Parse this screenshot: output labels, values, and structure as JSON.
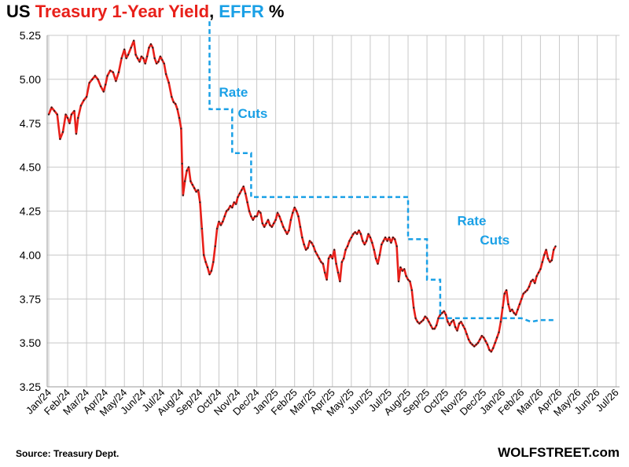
{
  "title": {
    "part1": "US ",
    "part2": "Treasury 1-Year Yield",
    "part3": ", ",
    "part4": "EFFR",
    "part5": " %"
  },
  "source": "Source: Treasury Dept.",
  "brand": "WOLFSTREET.com",
  "colors": {
    "yield": "#e8201a",
    "yield_dots": "#222222",
    "effr": "#1aa0e6",
    "grid": "#c8c8c8",
    "axis": "#999999"
  },
  "chart_data": {
    "type": "line",
    "xlabel": "",
    "ylabel": "",
    "ylim": [
      3.25,
      5.25
    ],
    "yticks": [
      "5.25",
      "5.00",
      "4.75",
      "4.50",
      "4.25",
      "4.00",
      "3.75",
      "3.50",
      "3.25"
    ],
    "month_labels": [
      "Jan/24",
      "Feb/24",
      "Mar/24",
      "Apr/24",
      "May/24",
      "Jun/24",
      "Jul/24",
      "Aug/24",
      "Sep/24",
      "Oct/24",
      "Nov/24",
      "Dec/24",
      "Jan/25",
      "Feb/25",
      "Mar/25",
      "Apr/25",
      "May/25",
      "Jun/25",
      "Jul/25",
      "Aug/25",
      "Sep/25",
      "Oct/25",
      "Nov/25",
      "Dec/25",
      "Jan/26",
      "Feb/26",
      "Mar/26",
      "Apr/26",
      "May/26",
      "Jun/26",
      "Jul/26"
    ],
    "grid": true,
    "annotations": [
      {
        "text": "Rate",
        "month": 9.0,
        "y": 4.9
      },
      {
        "text": "Cuts",
        "month": 10.0,
        "y": 4.78
      },
      {
        "text": "Rate",
        "month": 21.6,
        "y": 4.17
      },
      {
        "text": "Cuts",
        "month": 22.8,
        "y": 4.06
      }
    ],
    "series": [
      {
        "kind": "yield",
        "points": [
          [
            0.0,
            4.8
          ],
          [
            0.15,
            4.84
          ],
          [
            0.3,
            4.82
          ],
          [
            0.45,
            4.8
          ],
          [
            0.6,
            4.66
          ],
          [
            0.75,
            4.7
          ],
          [
            0.9,
            4.8
          ],
          [
            1.0,
            4.78
          ],
          [
            1.1,
            4.75
          ],
          [
            1.2,
            4.8
          ],
          [
            1.35,
            4.82
          ],
          [
            1.45,
            4.69
          ],
          [
            1.55,
            4.78
          ],
          [
            1.7,
            4.85
          ],
          [
            1.85,
            4.88
          ],
          [
            2.0,
            4.9
          ],
          [
            2.15,
            4.98
          ],
          [
            2.3,
            5.0
          ],
          [
            2.45,
            5.02
          ],
          [
            2.6,
            5.0
          ],
          [
            2.75,
            4.96
          ],
          [
            2.9,
            4.93
          ],
          [
            3.0,
            4.97
          ],
          [
            3.1,
            5.02
          ],
          [
            3.25,
            5.05
          ],
          [
            3.4,
            5.04
          ],
          [
            3.55,
            4.99
          ],
          [
            3.7,
            5.04
          ],
          [
            3.85,
            5.12
          ],
          [
            4.0,
            5.17
          ],
          [
            4.1,
            5.12
          ],
          [
            4.2,
            5.14
          ],
          [
            4.35,
            5.18
          ],
          [
            4.5,
            5.22
          ],
          [
            4.6,
            5.14
          ],
          [
            4.7,
            5.12
          ],
          [
            4.8,
            5.1
          ],
          [
            4.9,
            5.13
          ],
          [
            5.0,
            5.12
          ],
          [
            5.1,
            5.09
          ],
          [
            5.2,
            5.13
          ],
          [
            5.3,
            5.18
          ],
          [
            5.4,
            5.2
          ],
          [
            5.5,
            5.18
          ],
          [
            5.6,
            5.12
          ],
          [
            5.7,
            5.09
          ],
          [
            5.8,
            5.1
          ],
          [
            5.9,
            5.13
          ],
          [
            6.0,
            5.11
          ],
          [
            6.1,
            5.09
          ],
          [
            6.2,
            5.03
          ],
          [
            6.35,
            4.98
          ],
          [
            6.5,
            4.9
          ],
          [
            6.6,
            4.87
          ],
          [
            6.7,
            4.86
          ],
          [
            6.8,
            4.83
          ],
          [
            6.9,
            4.78
          ],
          [
            7.0,
            4.72
          ],
          [
            7.05,
            4.52
          ],
          [
            7.1,
            4.34
          ],
          [
            7.2,
            4.42
          ],
          [
            7.3,
            4.48
          ],
          [
            7.4,
            4.5
          ],
          [
            7.5,
            4.42
          ],
          [
            7.6,
            4.4
          ],
          [
            7.7,
            4.38
          ],
          [
            7.8,
            4.36
          ],
          [
            7.9,
            4.37
          ],
          [
            8.0,
            4.3
          ],
          [
            8.1,
            4.15
          ],
          [
            8.2,
            4.0
          ],
          [
            8.3,
            3.96
          ],
          [
            8.4,
            3.93
          ],
          [
            8.5,
            3.89
          ],
          [
            8.6,
            3.91
          ],
          [
            8.7,
            3.96
          ],
          [
            8.8,
            4.05
          ],
          [
            8.9,
            4.15
          ],
          [
            9.0,
            4.19
          ],
          [
            9.1,
            4.17
          ],
          [
            9.2,
            4.19
          ],
          [
            9.3,
            4.22
          ],
          [
            9.4,
            4.25
          ],
          [
            9.5,
            4.26
          ],
          [
            9.6,
            4.28
          ],
          [
            9.7,
            4.27
          ],
          [
            9.8,
            4.3
          ],
          [
            9.9,
            4.29
          ],
          [
            10.0,
            4.33
          ],
          [
            10.1,
            4.35
          ],
          [
            10.2,
            4.37
          ],
          [
            10.3,
            4.39
          ],
          [
            10.4,
            4.35
          ],
          [
            10.5,
            4.3
          ],
          [
            10.6,
            4.25
          ],
          [
            10.7,
            4.22
          ],
          [
            10.8,
            4.2
          ],
          [
            10.9,
            4.22
          ],
          [
            11.0,
            4.22
          ],
          [
            11.1,
            4.25
          ],
          [
            11.2,
            4.24
          ],
          [
            11.3,
            4.18
          ],
          [
            11.4,
            4.16
          ],
          [
            11.5,
            4.18
          ],
          [
            11.6,
            4.2
          ],
          [
            11.7,
            4.17
          ],
          [
            11.8,
            4.16
          ],
          [
            11.9,
            4.18
          ],
          [
            12.0,
            4.2
          ],
          [
            12.1,
            4.24
          ],
          [
            12.2,
            4.22
          ],
          [
            12.3,
            4.19
          ],
          [
            12.4,
            4.16
          ],
          [
            12.5,
            4.14
          ],
          [
            12.6,
            4.12
          ],
          [
            12.7,
            4.14
          ],
          [
            12.8,
            4.2
          ],
          [
            12.9,
            4.24
          ],
          [
            13.0,
            4.27
          ],
          [
            13.1,
            4.25
          ],
          [
            13.2,
            4.22
          ],
          [
            13.3,
            4.16
          ],
          [
            13.4,
            4.1
          ],
          [
            13.5,
            4.06
          ],
          [
            13.6,
            4.03
          ],
          [
            13.7,
            4.04
          ],
          [
            13.8,
            4.08
          ],
          [
            13.9,
            4.07
          ],
          [
            14.0,
            4.05
          ],
          [
            14.1,
            4.02
          ],
          [
            14.2,
            4.0
          ],
          [
            14.3,
            3.98
          ],
          [
            14.4,
            3.96
          ],
          [
            14.5,
            3.95
          ],
          [
            14.6,
            3.9
          ],
          [
            14.7,
            3.86
          ],
          [
            14.8,
            3.98
          ],
          [
            14.9,
            4.0
          ],
          [
            15.0,
            3.98
          ],
          [
            15.1,
            4.03
          ],
          [
            15.2,
            3.95
          ],
          [
            15.3,
            3.9
          ],
          [
            15.4,
            3.85
          ],
          [
            15.5,
            3.96
          ],
          [
            15.6,
            3.98
          ],
          [
            15.7,
            4.03
          ],
          [
            15.8,
            4.05
          ],
          [
            15.9,
            4.08
          ],
          [
            16.0,
            4.1
          ],
          [
            16.1,
            4.12
          ],
          [
            16.2,
            4.13
          ],
          [
            16.3,
            4.12
          ],
          [
            16.4,
            4.14
          ],
          [
            16.5,
            4.12
          ],
          [
            16.6,
            4.08
          ],
          [
            16.7,
            4.06
          ],
          [
            16.8,
            4.08
          ],
          [
            16.9,
            4.12
          ],
          [
            17.0,
            4.1
          ],
          [
            17.1,
            4.07
          ],
          [
            17.2,
            4.03
          ],
          [
            17.3,
            3.98
          ],
          [
            17.4,
            3.95
          ],
          [
            17.5,
            4.0
          ],
          [
            17.6,
            4.06
          ],
          [
            17.7,
            4.08
          ],
          [
            17.8,
            4.1
          ],
          [
            17.9,
            4.08
          ],
          [
            18.0,
            4.1
          ],
          [
            18.1,
            4.07
          ],
          [
            18.2,
            4.1
          ],
          [
            18.3,
            4.09
          ],
          [
            18.4,
            4.05
          ],
          [
            18.5,
            3.85
          ],
          [
            18.6,
            3.93
          ],
          [
            18.7,
            3.91
          ],
          [
            18.8,
            3.92
          ],
          [
            18.9,
            3.88
          ],
          [
            19.0,
            3.86
          ],
          [
            19.1,
            3.85
          ],
          [
            19.2,
            3.8
          ],
          [
            19.3,
            3.7
          ],
          [
            19.4,
            3.64
          ],
          [
            19.5,
            3.62
          ],
          [
            19.6,
            3.61
          ],
          [
            19.7,
            3.62
          ],
          [
            19.8,
            3.63
          ],
          [
            19.9,
            3.65
          ],
          [
            20.0,
            3.64
          ],
          [
            20.1,
            3.62
          ],
          [
            20.2,
            3.6
          ],
          [
            20.3,
            3.58
          ],
          [
            20.4,
            3.58
          ],
          [
            20.5,
            3.6
          ],
          [
            20.6,
            3.64
          ],
          [
            20.7,
            3.66
          ],
          [
            20.8,
            3.67
          ],
          [
            20.9,
            3.68
          ],
          [
            21.0,
            3.66
          ],
          [
            21.1,
            3.62
          ],
          [
            21.2,
            3.6
          ],
          [
            21.3,
            3.62
          ],
          [
            21.4,
            3.63
          ],
          [
            21.5,
            3.59
          ],
          [
            21.6,
            3.57
          ],
          [
            21.7,
            3.61
          ],
          [
            21.8,
            3.62
          ],
          [
            21.9,
            3.6
          ],
          [
            22.0,
            3.58
          ],
          [
            22.1,
            3.55
          ],
          [
            22.2,
            3.52
          ],
          [
            22.3,
            3.5
          ],
          [
            22.4,
            3.49
          ],
          [
            22.5,
            3.48
          ],
          [
            22.6,
            3.49
          ],
          [
            22.7,
            3.5
          ],
          [
            22.8,
            3.52
          ],
          [
            22.9,
            3.54
          ],
          [
            23.0,
            3.53
          ],
          [
            23.1,
            3.51
          ],
          [
            23.2,
            3.49
          ],
          [
            23.3,
            3.46
          ],
          [
            23.4,
            3.45
          ],
          [
            23.5,
            3.47
          ],
          [
            23.6,
            3.5
          ],
          [
            23.7,
            3.53
          ],
          [
            23.8,
            3.56
          ],
          [
            23.9,
            3.62
          ],
          [
            24.0,
            3.7
          ],
          [
            24.1,
            3.78
          ],
          [
            24.2,
            3.8
          ],
          [
            24.3,
            3.72
          ],
          [
            24.4,
            3.68
          ],
          [
            24.5,
            3.69
          ],
          [
            24.6,
            3.67
          ],
          [
            24.7,
            3.66
          ],
          [
            24.8,
            3.69
          ],
          [
            24.9,
            3.72
          ],
          [
            25.0,
            3.75
          ],
          [
            25.1,
            3.78
          ],
          [
            25.2,
            3.79
          ],
          [
            25.3,
            3.8
          ],
          [
            25.4,
            3.82
          ],
          [
            25.5,
            3.85
          ],
          [
            25.6,
            3.86
          ],
          [
            25.7,
            3.84
          ],
          [
            25.8,
            3.88
          ],
          [
            25.9,
            3.9
          ],
          [
            26.0,
            3.92
          ],
          [
            26.1,
            3.96
          ],
          [
            26.2,
            4.0
          ],
          [
            26.3,
            4.03
          ],
          [
            26.4,
            3.98
          ],
          [
            26.5,
            3.96
          ],
          [
            26.6,
            3.97
          ],
          [
            26.7,
            4.03
          ],
          [
            26.8,
            4.05
          ]
        ]
      },
      {
        "kind": "effr",
        "points": [
          [
            8.5,
            5.33
          ],
          [
            8.5,
            4.83
          ],
          [
            9.7,
            4.83
          ],
          [
            9.7,
            4.58
          ],
          [
            10.7,
            4.58
          ],
          [
            10.7,
            4.33
          ],
          [
            19.0,
            4.33
          ],
          [
            19.0,
            4.09
          ],
          [
            20.0,
            4.09
          ],
          [
            20.0,
            3.86
          ],
          [
            20.7,
            3.86
          ],
          [
            20.7,
            3.64
          ],
          [
            25.0,
            3.64
          ],
          [
            25.5,
            3.62
          ],
          [
            26.0,
            3.63
          ],
          [
            26.7,
            3.63
          ]
        ]
      }
    ]
  }
}
